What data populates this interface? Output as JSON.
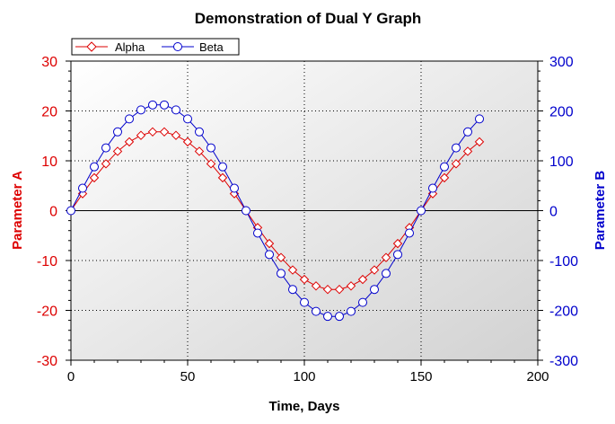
{
  "chart_data": {
    "type": "line",
    "title": "Demonstration of Dual Y Graph",
    "xlabel": "Time, Days",
    "ylabel": "Parameter A",
    "y2label": "Parameter B",
    "xlim": [
      0,
      200
    ],
    "ylim": [
      -30,
      30
    ],
    "y2lim": [
      -300,
      300
    ],
    "xticks": [
      0,
      50,
      100,
      150,
      200
    ],
    "yticks": [
      -30,
      -20,
      -10,
      0,
      10,
      20,
      30
    ],
    "y2ticks": [
      -300,
      -200,
      -100,
      0,
      100,
      200,
      300
    ],
    "grid": true,
    "legend_position": "top-left",
    "x": [
      0,
      5,
      10,
      15,
      20,
      25,
      30,
      35,
      40,
      45,
      50,
      55,
      60,
      65,
      70,
      75,
      80,
      85,
      90,
      95,
      100,
      105,
      110,
      115,
      120,
      125,
      130,
      135,
      140,
      145,
      150,
      155,
      160,
      165,
      170,
      175
    ],
    "series": [
      {
        "name": "Alpha",
        "axis": "left",
        "color": "#dd0000",
        "marker": "diamond",
        "values": [
          0.0,
          3.4,
          6.6,
          9.4,
          11.9,
          13.8,
          15.1,
          15.8,
          15.8,
          15.1,
          13.8,
          11.9,
          9.4,
          6.6,
          3.4,
          0.0,
          -3.4,
          -6.6,
          -9.4,
          -11.9,
          -13.8,
          -15.1,
          -15.8,
          -15.8,
          -15.1,
          -13.8,
          -11.9,
          -9.4,
          -6.6,
          -3.4,
          0.0,
          3.4,
          6.6,
          9.4,
          11.9,
          13.8
        ]
      },
      {
        "name": "Beta",
        "axis": "right",
        "color": "#0000cc",
        "marker": "circle",
        "values": [
          0,
          45,
          88,
          126,
          158,
          184,
          202,
          212,
          212,
          202,
          184,
          158,
          126,
          88,
          45,
          0,
          -45,
          -88,
          -126,
          -158,
          -184,
          -202,
          -212,
          -212,
          -202,
          -184,
          -158,
          -126,
          -88,
          -45,
          0,
          45,
          88,
          126,
          158,
          184
        ]
      }
    ]
  }
}
